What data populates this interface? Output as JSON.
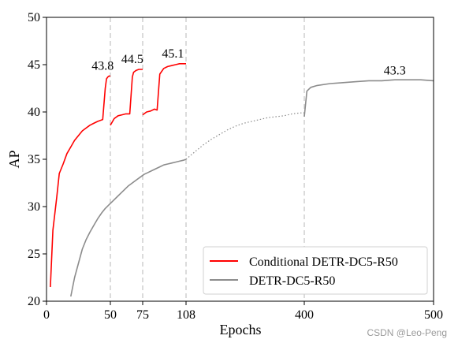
{
  "chart_data": {
    "type": "line",
    "xlabel": "Epochs",
    "ylabel": "AP",
    "ylim": [
      20,
      50
    ],
    "yticks": [
      20,
      25,
      30,
      35,
      40,
      45,
      50
    ],
    "x_tick_labels": [
      "0",
      "50",
      "75",
      "108",
      "400",
      "500"
    ],
    "x_tick_epochs": [
      0,
      50,
      75,
      108,
      400,
      500
    ],
    "vlines_epochs": [
      50,
      75,
      108,
      400
    ],
    "legend_position": "lower-right",
    "series": [
      {
        "name": "Conditional DETR-DC5-R50",
        "color": "#ff0000",
        "segments": [
          {
            "style": "solid",
            "x": [
              3,
              5,
              8,
              10,
              13,
              16,
              19,
              22,
              25,
              28,
              31,
              34,
              37,
              40,
              44,
              46,
              47,
              48,
              49,
              50
            ],
            "y": [
              21.5,
              27.5,
              31,
              33.5,
              34.5,
              35.6,
              36.3,
              37,
              37.5,
              38,
              38.3,
              38.6,
              38.8,
              39,
              39.2,
              42.5,
              43.5,
              43.7,
              43.8,
              43.8
            ]
          },
          {
            "style": "solid",
            "x": [
              50,
              53,
              56,
              59,
              62,
              65,
              67,
              68,
              70,
              72,
              75
            ],
            "y": [
              38.6,
              39.3,
              39.6,
              39.7,
              39.8,
              39.8,
              43.7,
              44.2,
              44.4,
              44.5,
              44.5
            ]
          },
          {
            "style": "solid",
            "x": [
              75,
              78,
              81,
              84,
              86,
              88,
              91,
              94,
              97,
              100,
              103,
              106,
              108
            ],
            "y": [
              39.7,
              40,
              40.1,
              40.3,
              40.2,
              44,
              44.6,
              44.8,
              44.9,
              45,
              45.1,
              45.1,
              45.1
            ]
          }
        ],
        "labels": [
          {
            "x": 44,
            "y": 43.8,
            "text": "43.8"
          },
          {
            "x": 67,
            "y": 44.5,
            "text": "44.5"
          },
          {
            "x": 98,
            "y": 45.1,
            "text": "45.1"
          }
        ]
      },
      {
        "name": "DETR-DC5-R50",
        "color": "#8c8c8c",
        "segments": [
          {
            "style": "solid",
            "x": [
              19,
              22,
              25,
              28,
              31,
              34,
              37,
              40,
              43,
              46,
              49,
              52,
              55,
              58,
              61,
              64,
              67,
              70,
              73,
              76,
              79,
              82,
              85,
              88,
              91,
              94,
              97,
              100,
              103,
              106,
              108
            ],
            "y": [
              20.5,
              22.5,
              24,
              25.5,
              26.5,
              27.3,
              28,
              28.7,
              29.3,
              29.8,
              30.2,
              30.6,
              31,
              31.4,
              31.8,
              32.2,
              32.5,
              32.8,
              33.1,
              33.4,
              33.6,
              33.8,
              34,
              34.2,
              34.4,
              34.5,
              34.6,
              34.7,
              34.8,
              34.9,
              35
            ]
          },
          {
            "style": "dotted",
            "x": [
              108,
              130,
              150,
              170,
              190,
              210,
              230,
              250,
              270,
              290,
              310,
              330,
              350,
              370,
              390,
              400
            ],
            "y": [
              35,
              35.8,
              36.5,
              37.1,
              37.6,
              38.1,
              38.5,
              38.8,
              39,
              39.2,
              39.4,
              39.5,
              39.6,
              39.8,
              39.9,
              39.9
            ]
          },
          {
            "style": "solid",
            "x": [
              400,
              402,
              405,
              410,
              420,
              430,
              440,
              450,
              460,
              470,
              480,
              490,
              500
            ],
            "y": [
              39.5,
              42.2,
              42.6,
              42.8,
              43,
              43.1,
              43.2,
              43.3,
              43.3,
              43.4,
              43.4,
              43.4,
              43.3
            ]
          }
        ],
        "labels": [
          {
            "x": 470,
            "y": 43.3,
            "text": "43.3"
          }
        ]
      }
    ]
  },
  "watermark": "CSDN @Leo-Peng"
}
